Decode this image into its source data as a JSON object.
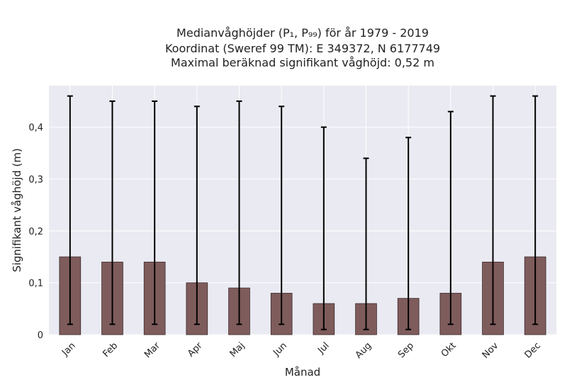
{
  "chart_data": {
    "type": "bar",
    "title_lines": [
      "Medianvåghöjder (P₁, P₉₉) för år 1979 - 2019",
      "Koordinat (Sweref 99 TM): E 349372, N 6177749",
      "Maximal beräknad signifikant våghöjd: 0,52 m"
    ],
    "xlabel": "Månad",
    "ylabel": "Signifikant våghöjd (m)",
    "categories": [
      "Jan",
      "Feb",
      "Mar",
      "Apr",
      "Maj",
      "Jun",
      "Jul",
      "Aug",
      "Sep",
      "Okt",
      "Nov",
      "Dec"
    ],
    "series": [
      {
        "values": [
          0.15,
          0.14,
          0.14,
          0.1,
          0.09,
          0.08,
          0.06,
          0.06,
          0.07,
          0.08,
          0.14,
          0.15
        ],
        "error_low": [
          0.02,
          0.02,
          0.02,
          0.02,
          0.02,
          0.02,
          0.01,
          0.01,
          0.01,
          0.02,
          0.02,
          0.02
        ],
        "error_high": [
          0.46,
          0.45,
          0.45,
          0.44,
          0.45,
          0.44,
          0.4,
          0.34,
          0.38,
          0.43,
          0.46,
          0.46
        ]
      }
    ],
    "yticks": [
      0,
      0.1,
      0.2,
      0.3,
      0.4
    ],
    "ytick_labels": [
      "0",
      "0,1",
      "0,2",
      "0,3",
      "0,4"
    ],
    "ylim": [
      0,
      0.48
    ],
    "grid": true,
    "colors": {
      "bar_fill": "#7f5c5c",
      "bar_edge": "#3a2a2a",
      "plot_bg": "#eaeaf2",
      "grid": "#ffffff",
      "error": "#000000"
    }
  }
}
